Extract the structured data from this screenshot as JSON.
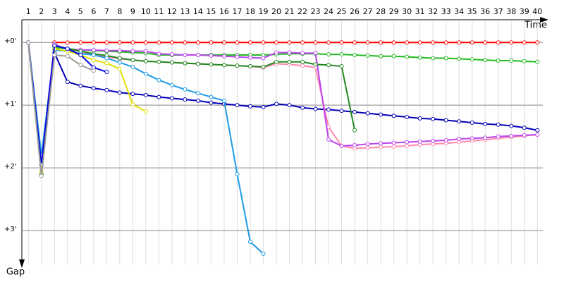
{
  "chart_data": {
    "type": "line",
    "x_label": "Time",
    "y_label": "Gap",
    "x": [
      1,
      2,
      3,
      4,
      5,
      6,
      7,
      8,
      9,
      10,
      11,
      12,
      13,
      14,
      15,
      16,
      17,
      18,
      19,
      20,
      21,
      22,
      23,
      24,
      25,
      26,
      27,
      28,
      29,
      30,
      31,
      32,
      33,
      34,
      35,
      36,
      37,
      38,
      39,
      40
    ],
    "xlim": [
      0.5,
      41.5
    ],
    "xticks": [
      1,
      2,
      3,
      4,
      5,
      6,
      7,
      8,
      9,
      10,
      11,
      12,
      13,
      14,
      15,
      16,
      17,
      18,
      19,
      20,
      21,
      22,
      23,
      24,
      25,
      26,
      27,
      28,
      29,
      30,
      31,
      32,
      33,
      34,
      35,
      36,
      37,
      38,
      39,
      40
    ],
    "ylim": [
      -0.34,
      3.54
    ],
    "y_inverted": true,
    "yticks": [
      {
        "value": 0,
        "label": "+0'"
      },
      {
        "value": 1,
        "label": "+1'"
      },
      {
        "value": 2,
        "label": "+2'"
      },
      {
        "value": 3,
        "label": "+3'"
      }
    ],
    "grid": true,
    "series": [
      {
        "color": "#ff0000",
        "values": [
          null,
          null,
          0,
          0,
          0,
          0,
          0,
          0,
          0,
          0,
          0,
          0,
          0,
          0,
          0,
          0,
          0,
          0,
          0,
          0,
          0,
          0,
          0,
          0,
          0,
          0,
          0,
          0,
          0,
          0,
          0,
          0,
          0,
          0,
          0,
          0,
          0,
          0,
          0,
          0
        ]
      },
      {
        "color": "#0000b4",
        "values": [
          0,
          1.89,
          0.17,
          0.63,
          0.69,
          0.73,
          0.76,
          0.8,
          0.82,
          0.84,
          0.87,
          0.89,
          0.91,
          0.93,
          0.96,
          0.98,
          1.0,
          1.02,
          1.03,
          0.98,
          1.0,
          1.04,
          1.06,
          1.07,
          1.09,
          1.11,
          1.13,
          1.15,
          1.17,
          1.19,
          1.21,
          1.22,
          1.24,
          1.26,
          1.28,
          1.3,
          1.31,
          1.33,
          1.36,
          1.4
        ]
      },
      {
        "color": "#22bb22",
        "values": [
          0,
          1.85,
          0.08,
          0.1,
          0.12,
          0.13,
          0.14,
          0.15,
          0.16,
          0.17,
          0.2,
          0.2,
          0.2,
          0.2,
          0.2,
          0.2,
          0.2,
          0.2,
          0.2,
          0.19,
          0.18,
          0.18,
          0.18,
          0.19,
          0.19,
          0.2,
          0.21,
          0.22,
          0.22,
          0.23,
          0.24,
          0.25,
          0.25,
          0.26,
          0.27,
          0.28,
          0.29,
          0.29,
          0.3,
          0.31
        ]
      },
      {
        "color": "#ff88aa",
        "values": [
          0,
          1.9,
          0.05,
          0.1,
          0.15,
          0.2,
          0.23,
          0.26,
          0.28,
          0.3,
          0.31,
          0.32,
          0.33,
          0.34,
          0.35,
          0.36,
          0.37,
          0.38,
          0.4,
          0.34,
          0.35,
          0.37,
          0.4,
          1.35,
          1.65,
          1.69,
          1.68,
          1.67,
          1.66,
          1.65,
          1.63,
          1.62,
          1.61,
          1.59,
          1.57,
          1.55,
          1.53,
          1.51,
          1.49,
          1.47
        ]
      },
      {
        "color": "#bb44ee",
        "values": [
          0,
          1.88,
          0.03,
          0.11,
          0.12,
          0.12,
          0.13,
          0.13,
          0.14,
          0.14,
          0.18,
          0.19,
          0.2,
          0.2,
          0.21,
          0.22,
          0.23,
          0.24,
          0.25,
          0.16,
          0.16,
          0.17,
          0.17,
          1.55,
          1.65,
          1.64,
          1.62,
          1.61,
          1.6,
          1.59,
          1.58,
          1.57,
          1.56,
          1.54,
          1.53,
          1.52,
          1.5,
          1.49,
          1.48,
          1.47
        ]
      },
      {
        "color": "#228822",
        "values": [
          0,
          2.1,
          0.05,
          0.1,
          0.14,
          0.18,
          0.21,
          0.25,
          0.28,
          0.3,
          0.31,
          0.32,
          0.33,
          0.34,
          0.35,
          0.36,
          0.37,
          0.38,
          0.39,
          0.31,
          0.31,
          0.31,
          0.35,
          0.36,
          0.38,
          1.4,
          null,
          null,
          null,
          null,
          null,
          null,
          null,
          null,
          null,
          null,
          null,
          null,
          null,
          null
        ]
      },
      {
        "color": "#1e9be6",
        "values": [
          0,
          1.8,
          0.12,
          0.14,
          0.18,
          0.2,
          0.25,
          0.32,
          0.39,
          0.5,
          0.6,
          0.68,
          0.75,
          0.81,
          0.87,
          0.93,
          2.1,
          3.18,
          3.37,
          null,
          null,
          null,
          null,
          null,
          null,
          null,
          null,
          null,
          null,
          null,
          null,
          null,
          null,
          null,
          null,
          null,
          null,
          null,
          null,
          null
        ]
      },
      {
        "color": "#dddd00",
        "values": [
          0,
          2.05,
          0.1,
          0.14,
          0.2,
          0.28,
          0.33,
          0.42,
          0.99,
          1.1,
          null,
          null,
          null,
          null,
          null,
          null,
          null,
          null,
          null,
          null,
          null,
          null,
          null,
          null,
          null,
          null,
          null,
          null,
          null,
          null,
          null,
          null,
          null,
          null,
          null,
          null,
          null,
          null,
          null,
          null
        ]
      },
      {
        "color": "#0000dd",
        "values": [
          0,
          1.95,
          0.05,
          0.1,
          0.2,
          0.4,
          0.47,
          null,
          null,
          null,
          null,
          null,
          null,
          null,
          null,
          null,
          null,
          null,
          null,
          null,
          null,
          null,
          null,
          null,
          null,
          null,
          null,
          null,
          null,
          null,
          null,
          null,
          null,
          null,
          null,
          null,
          null,
          null,
          null,
          null
        ]
      },
      {
        "color": "#999999",
        "values": [
          0,
          2.13,
          0.2,
          0.22,
          0.36,
          0.45,
          null,
          null,
          null,
          null,
          null,
          null,
          null,
          null,
          null,
          null,
          null,
          null,
          null,
          null,
          null,
          null,
          null,
          null,
          null,
          null,
          null,
          null,
          null,
          null,
          null,
          null,
          null,
          null,
          null,
          null,
          null,
          null,
          null,
          null
        ]
      }
    ]
  }
}
